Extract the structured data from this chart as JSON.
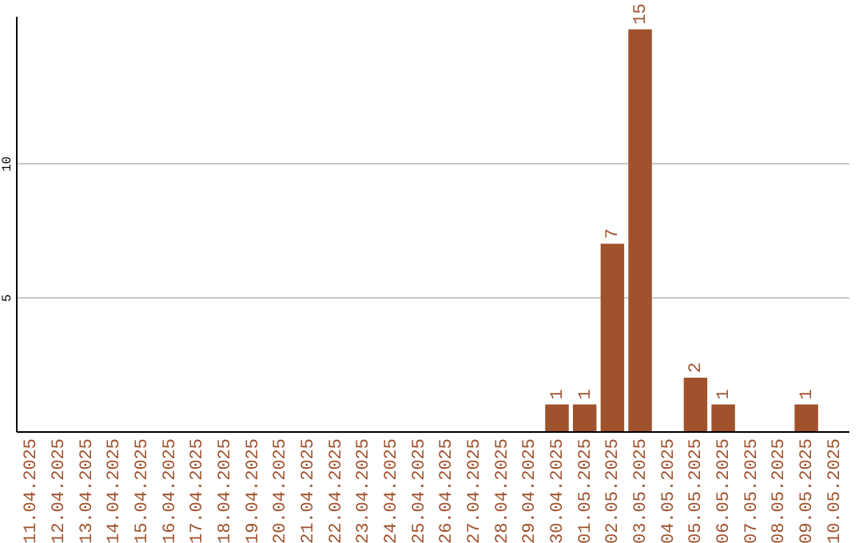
{
  "chart_data": {
    "type": "bar",
    "categories": [
      "11.04.2025",
      "12.04.2025",
      "13.04.2025",
      "14.04.2025",
      "15.04.2025",
      "16.04.2025",
      "17.04.2025",
      "18.04.2025",
      "19.04.2025",
      "20.04.2025",
      "21.04.2025",
      "22.04.2025",
      "23.04.2025",
      "24.04.2025",
      "25.04.2025",
      "26.04.2025",
      "27.04.2025",
      "28.04.2025",
      "29.04.2025",
      "30.04.2025",
      "01.05.2025",
      "02.05.2025",
      "03.05.2025",
      "04.05.2025",
      "05.05.2025",
      "06.05.2025",
      "07.05.2025",
      "08.05.2025",
      "09.05.2025",
      "10.05.2025"
    ],
    "values": [
      0,
      0,
      0,
      0,
      0,
      0,
      0,
      0,
      0,
      0,
      0,
      0,
      0,
      0,
      0,
      0,
      0,
      0,
      0,
      1,
      1,
      7,
      15,
      0,
      2,
      1,
      0,
      0,
      1,
      0
    ],
    "value_labels": [
      null,
      null,
      null,
      null,
      null,
      null,
      null,
      null,
      null,
      null,
      null,
      null,
      null,
      null,
      null,
      null,
      null,
      null,
      null,
      "1",
      "1",
      "7",
      "15",
      null,
      "2",
      "1",
      null,
      null,
      "1",
      null
    ],
    "color": "#a0522d",
    "ylim": [
      0,
      15.5
    ],
    "yticks": [
      5,
      10
    ],
    "grid": "y"
  }
}
